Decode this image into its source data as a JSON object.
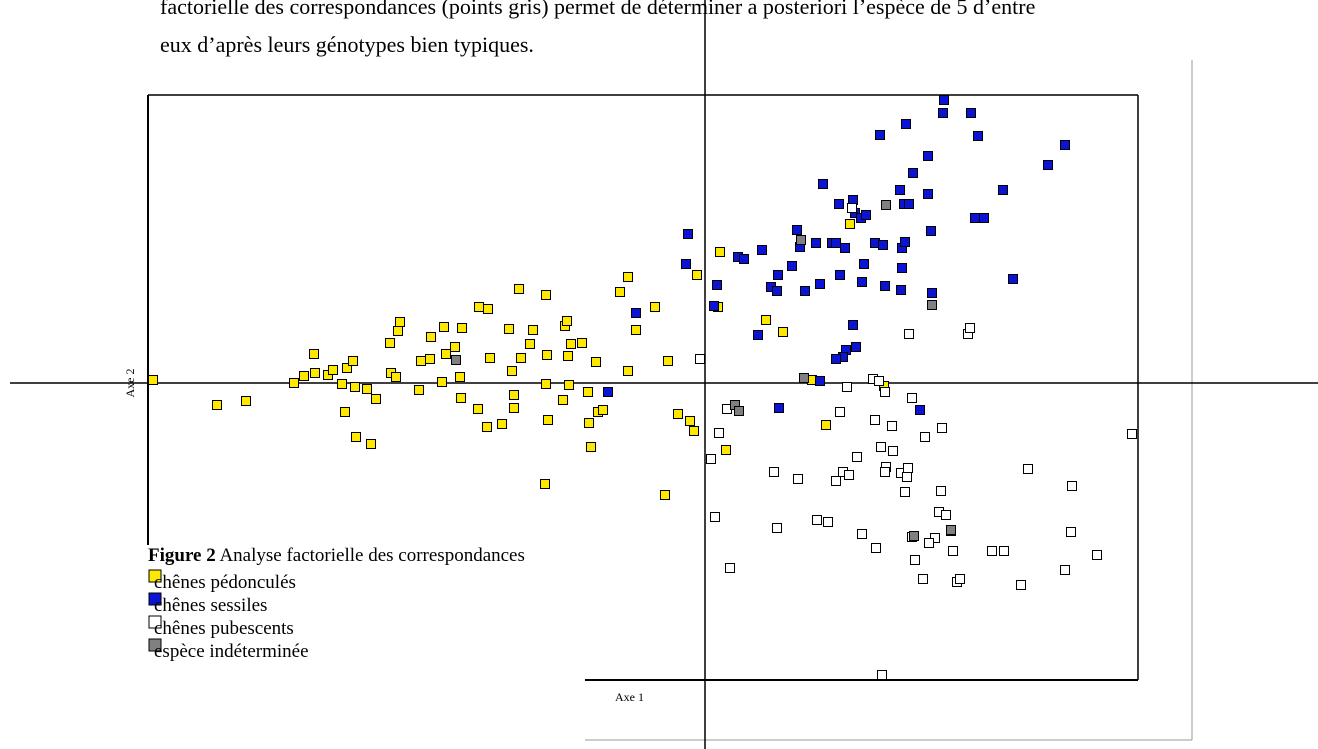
{
  "text": {
    "lines": [
      "factorielle des correspondances (points gris) permet de déterminer a posteriori l’espèce de 5 d’entre",
      "eux d’après leurs génotypes bien typiques."
    ]
  },
  "chart_data": {
    "type": "scatter",
    "xlabel": "Axe 1",
    "ylabel": "Axe 2",
    "figure_label": "Figure 2",
    "caption": "Analyse factorielle des correspondances",
    "xlim": [
      -557,
      433
    ],
    "ylim": [
      -297,
      288
    ],
    "legend": "lower left",
    "series": [
      {
        "name": "chênes pédonculés",
        "color": "#ffe800",
        "x": [
          -552,
          -488,
          -459,
          -411,
          -401,
          -390,
          -391,
          -377,
          -372,
          -358,
          -352,
          -363,
          -350,
          -338,
          -329,
          -360,
          -349,
          -334,
          -314,
          -309,
          -315,
          -307,
          -305,
          -286,
          -284,
          -275,
          -274,
          -261,
          -259,
          -243,
          -250,
          -245,
          -263,
          -244,
          -227,
          -218,
          -203,
          -191,
          -191,
          -193,
          -196,
          -215,
          -226,
          -217,
          -186,
          -159,
          -172,
          -184,
          -175,
          -158,
          -159,
          -157,
          -142,
          -136,
          -137,
          -134,
          -140,
          -123,
          -109,
          -117,
          -107,
          -102,
          -116,
          -114,
          -160,
          -77,
          -40,
          -27,
          -15,
          -11,
          -37,
          -69,
          -50,
          -85,
          -77,
          -138,
          -8,
          15,
          21,
          13,
          61,
          78,
          107,
          121,
          145,
          179
        ],
        "values": [
          3,
          -22,
          -18,
          0,
          7,
          10,
          29,
          8,
          13,
          15,
          22,
          -1,
          -4,
          -6,
          -16,
          -29,
          -54,
          -61,
          10,
          6,
          40,
          52,
          61,
          -7,
          22,
          24,
          46,
          56,
          29,
          55,
          36,
          6,
          1,
          -15,
          -26,
          -44,
          -41,
          -12,
          -25,
          12,
          54,
          25,
          76,
          74,
          94,
          88,
          53,
          25,
          39,
          28,
          -1,
          -37,
          -17,
          -2,
          27,
          39,
          57,
          40,
          21,
          -9,
          -29,
          -27,
          -40,
          -64,
          -101,
          12,
          -112,
          -31,
          -38,
          -48,
          22,
          53,
          76,
          91,
          106,
          62,
          108,
          131,
          -67,
          76,
          63,
          51,
          3,
          -42,
          159,
          -3
        ]
      },
      {
        "name": "chênes sessiles",
        "color": "#0a14d2",
        "x": [
          -97,
          -69,
          -17,
          -19,
          9,
          12,
          33,
          39,
          57,
          66,
          72,
          73,
          87,
          92,
          95,
          100,
          115,
          111,
          118,
          127,
          131,
          135,
          134,
          140,
          148,
          150,
          156,
          161,
          157,
          159,
          170,
          175,
          180,
          178,
          195,
          197,
          196,
          197,
          200,
          199,
          204,
          201,
          208,
          223,
          223,
          226,
          227,
          239,
          238,
          266,
          273,
          270,
          279,
          298,
          308,
          343,
          360,
          148,
          151,
          141,
          138,
          131,
          74,
          215,
          115,
          53
        ],
        "values": [
          -9,
          70,
          149,
          119,
          77,
          98,
          126,
          124,
          133,
          96,
          92,
          108,
          117,
          153,
          136,
          92,
          99,
          140,
          199,
          140,
          140,
          108,
          179,
          135,
          183,
          170,
          165,
          168,
          101,
          119,
          140,
          248,
          97,
          138,
          193,
          135,
          93,
          115,
          141,
          179,
          179,
          259,
          210,
          189,
          227,
          152,
          90,
          283,
          270,
          270,
          247,
          165,
          165,
          193,
          104,
          218,
          238,
          58,
          36,
          33,
          26,
          24,
          -25,
          -27,
          2,
          48
        ]
      },
      {
        "name": "chênes pubescents",
        "color": "#ffffff",
        "x": [
          -5,
          6,
          14,
          22,
          10,
          25,
          69,
          72,
          93,
          112,
          123,
          131,
          138,
          144,
          152,
          135,
          142,
          168,
          174,
          180,
          170,
          176,
          181,
          180,
          188,
          196,
          202,
          200,
          203,
          187,
          207,
          204,
          220,
          237,
          236,
          234,
          241,
          246,
          230,
          224,
          207,
          210,
          218,
          248,
          252,
          255,
          287,
          299,
          316,
          323,
          360,
          367,
          366,
          392,
          427,
          263,
          265,
          171,
          157,
          177,
          147
        ],
        "values": [
          24,
          -76,
          -50,
          -26,
          -134,
          -185,
          -89,
          -145,
          -96,
          -137,
          -139,
          -98,
          -89,
          -92,
          -74,
          -29,
          -4,
          4,
          2,
          -9,
          -37,
          -64,
          -84,
          -89,
          -68,
          -90,
          -94,
          -109,
          -85,
          -43,
          -15,
          49,
          -54,
          -45,
          -108,
          -129,
          -132,
          -148,
          -155,
          -160,
          -154,
          -177,
          -196,
          -168,
          -199,
          -196,
          -168,
          -168,
          -202,
          -86,
          -187,
          -103,
          -149,
          -172,
          -51,
          49,
          55,
          -165,
          -151,
          -292,
          175
        ]
      },
      {
        "name": "espèce indéterminée",
        "color": "#808080",
        "x": [
          -249,
          96,
          181,
          99,
          30,
          34,
          227,
          209,
          246
        ],
        "values": [
          23,
          143,
          178,
          5,
          -22,
          -28,
          78,
          -153,
          -147
        ]
      }
    ]
  }
}
